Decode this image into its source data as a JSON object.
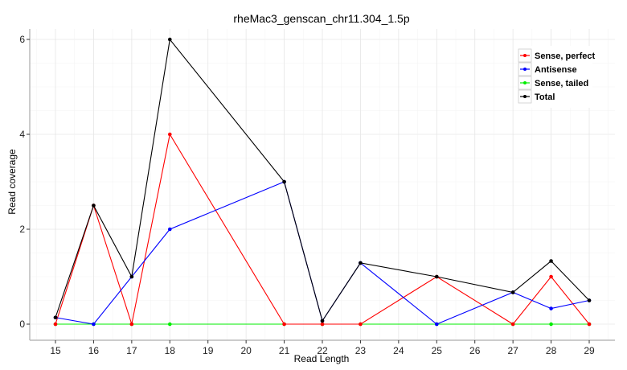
{
  "chart_data": {
    "type": "line",
    "title": "rheMac3_genscan_chr11.304_1.5p",
    "xlabel": "Read Length",
    "ylabel": "Read coverage",
    "xlim": [
      14.5,
      29.7
    ],
    "ylim": [
      -0.35,
      6.5
    ],
    "xticks": [
      15,
      16,
      17,
      18,
      19,
      20,
      21,
      22,
      23,
      24,
      25,
      26,
      27,
      28,
      29
    ],
    "yticks": [
      0,
      2,
      4,
      6
    ],
    "x": [
      15,
      16,
      17,
      18,
      21,
      22,
      23,
      25,
      27,
      28,
      29
    ],
    "grid": true,
    "legend_position": "top-right",
    "series": [
      {
        "name": "Sense, perfect",
        "color": "#ff0000",
        "values": [
          0,
          2.5,
          0,
          4,
          0,
          0,
          0,
          1,
          0,
          1,
          0
        ]
      },
      {
        "name": "Antisense",
        "color": "#0000ff",
        "values": [
          0.14,
          0,
          1,
          2,
          3,
          0.07,
          1.29,
          0,
          0.67,
          0.33,
          0.5
        ]
      },
      {
        "name": "Sense, tailed",
        "color": "#00ee00",
        "values": [
          0,
          0,
          0,
          0,
          0,
          0,
          0,
          0,
          0,
          0,
          0
        ]
      },
      {
        "name": "Total",
        "color": "#000000",
        "values": [
          0.14,
          2.5,
          1,
          6,
          3,
          0.07,
          1.29,
          1,
          0.67,
          1.33,
          0.5
        ]
      }
    ]
  }
}
